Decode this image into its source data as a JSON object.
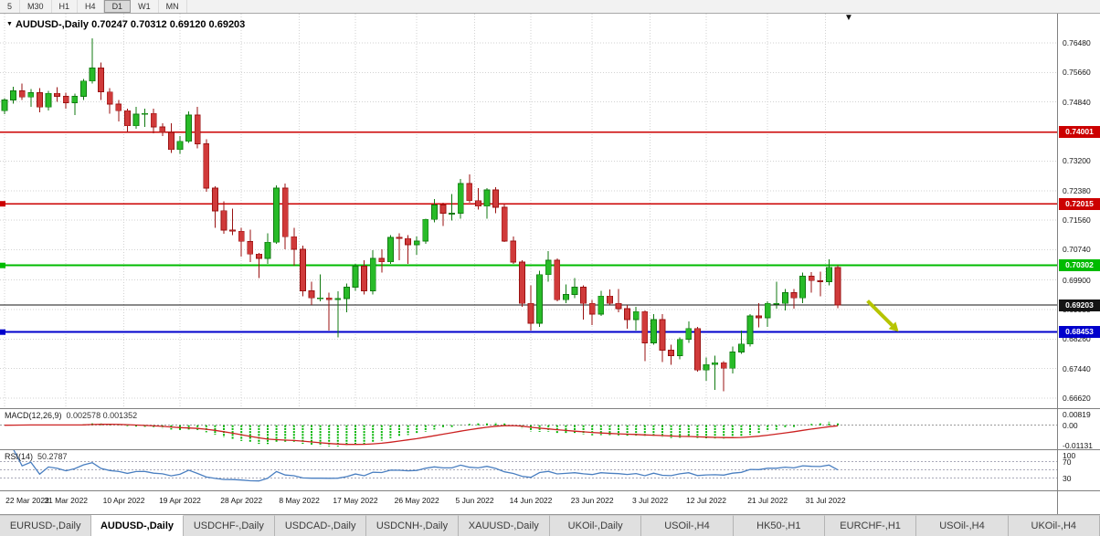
{
  "toolbar": {
    "timeframes": [
      {
        "label": "5",
        "active": false
      },
      {
        "label": "M30",
        "active": false
      },
      {
        "label": "H1",
        "active": false
      },
      {
        "label": "H4",
        "active": false
      },
      {
        "label": "D1",
        "active": true
      },
      {
        "label": "W1",
        "active": false
      },
      {
        "label": "MN",
        "active": false
      }
    ]
  },
  "chart_header": {
    "symbol": "AUDUSD-,Daily",
    "ohlc": "0.70247 0.70312 0.69120 0.69203"
  },
  "chart_data": {
    "type": "candlestick",
    "symbol": "AUDUSD",
    "period": "Daily",
    "title": "AUDUSD-,Daily",
    "ohlc_display": {
      "open": "0.70247",
      "high": "0.70312",
      "low": "0.69120",
      "close": "0.69203"
    },
    "y_range": {
      "top": 0.77292,
      "bottom": 0.6634
    },
    "y_ticks": [
      "0.76480",
      "0.75660",
      "0.74840",
      "0.73200",
      "0.72380",
      "0.71560",
      "0.70740",
      "0.69900",
      "0.69080",
      "0.68260",
      "0.67440",
      "0.66620"
    ],
    "x_labels": [
      {
        "text": "22 Mar 2022",
        "i": 0
      },
      {
        "text": "31 Mar 2022",
        "i": 7
      },
      {
        "text": "10 Apr 2022",
        "i": 13.6
      },
      {
        "text": "19 Apr 2022",
        "i": 20
      },
      {
        "text": "28 Apr 2022",
        "i": 27
      },
      {
        "text": "8 May 2022",
        "i": 33.6
      },
      {
        "text": "17 May 2022",
        "i": 40
      },
      {
        "text": "26 May 2022",
        "i": 47
      },
      {
        "text": "5 Jun 2022",
        "i": 53.6
      },
      {
        "text": "14 Jun 2022",
        "i": 60
      },
      {
        "text": "23 Jun 2022",
        "i": 67
      },
      {
        "text": "3 Jul 2022",
        "i": 73.6
      },
      {
        "text": "12 Jul 2022",
        "i": 80
      },
      {
        "text": "21 Jul 2022",
        "i": 87
      },
      {
        "text": "31 Jul 2022",
        "i": 93.6
      }
    ],
    "candles": [
      [
        0.746,
        0.7495,
        0.745,
        0.749
      ],
      [
        0.749,
        0.7527,
        0.748,
        0.7515
      ],
      [
        0.7515,
        0.7535,
        0.749,
        0.7498
      ],
      [
        0.7498,
        0.752,
        0.747,
        0.751
      ],
      [
        0.751,
        0.7522,
        0.7455,
        0.747
      ],
      [
        0.747,
        0.7515,
        0.746,
        0.7508
      ],
      [
        0.7508,
        0.7525,
        0.7485,
        0.75
      ],
      [
        0.75,
        0.751,
        0.7465,
        0.7482
      ],
      [
        0.7482,
        0.7508,
        0.7448,
        0.75
      ],
      [
        0.75,
        0.7548,
        0.749,
        0.7542
      ],
      [
        0.7542,
        0.7661,
        0.7535,
        0.7578
      ],
      [
        0.7578,
        0.7593,
        0.749,
        0.7512
      ],
      [
        0.7512,
        0.7522,
        0.7452,
        0.7478
      ],
      [
        0.7478,
        0.749,
        0.743,
        0.746
      ],
      [
        0.746,
        0.7465,
        0.74,
        0.7418
      ],
      [
        0.7418,
        0.747,
        0.741,
        0.745
      ],
      [
        0.745,
        0.7465,
        0.7415,
        0.7452
      ],
      [
        0.7452,
        0.7465,
        0.7397,
        0.7415
      ],
      [
        0.7415,
        0.7425,
        0.739,
        0.74
      ],
      [
        0.74,
        0.7425,
        0.7342,
        0.7352
      ],
      [
        0.7352,
        0.739,
        0.734,
        0.7375
      ],
      [
        0.7375,
        0.7458,
        0.737,
        0.7448
      ],
      [
        0.7448,
        0.747,
        0.7355,
        0.7368
      ],
      [
        0.7368,
        0.738,
        0.7235,
        0.7245
      ],
      [
        0.7245,
        0.725,
        0.7135,
        0.7182
      ],
      [
        0.7182,
        0.7208,
        0.7118,
        0.7128
      ],
      [
        0.7128,
        0.7188,
        0.7115,
        0.7125
      ],
      [
        0.7125,
        0.7135,
        0.7055,
        0.7097
      ],
      [
        0.7097,
        0.713,
        0.704,
        0.7062
      ],
      [
        0.7062,
        0.7065,
        0.6995,
        0.705
      ],
      [
        0.705,
        0.712,
        0.7035,
        0.7095
      ],
      [
        0.7095,
        0.7253,
        0.709,
        0.7245
      ],
      [
        0.7245,
        0.7258,
        0.7075,
        0.711
      ],
      [
        0.711,
        0.7135,
        0.703,
        0.7075
      ],
      [
        0.7075,
        0.7085,
        0.6945,
        0.696
      ],
      [
        0.696,
        0.6985,
        0.692,
        0.694
      ],
      [
        0.694,
        0.7005,
        0.693,
        0.694
      ],
      [
        0.694,
        0.6955,
        0.685,
        0.6935
      ],
      [
        0.6935,
        0.6958,
        0.683,
        0.6938
      ],
      [
        0.6938,
        0.698,
        0.69,
        0.697
      ],
      [
        0.697,
        0.7035,
        0.696,
        0.7028
      ],
      [
        0.7028,
        0.7045,
        0.695,
        0.696
      ],
      [
        0.696,
        0.7073,
        0.695,
        0.705
      ],
      [
        0.705,
        0.7075,
        0.701,
        0.704
      ],
      [
        0.704,
        0.7115,
        0.7035,
        0.7108
      ],
      [
        0.7108,
        0.712,
        0.7045,
        0.7105
      ],
      [
        0.7105,
        0.7115,
        0.7035,
        0.7088
      ],
      [
        0.7088,
        0.711,
        0.706,
        0.7098
      ],
      [
        0.7098,
        0.716,
        0.709,
        0.7158
      ],
      [
        0.7158,
        0.7215,
        0.715,
        0.7198
      ],
      [
        0.7198,
        0.7205,
        0.714,
        0.7175
      ],
      [
        0.7175,
        0.7228,
        0.7155,
        0.7175
      ],
      [
        0.7175,
        0.727,
        0.716,
        0.7258
      ],
      [
        0.7258,
        0.7283,
        0.7205,
        0.721
      ],
      [
        0.721,
        0.7245,
        0.7185,
        0.7195
      ],
      [
        0.7195,
        0.7245,
        0.716,
        0.724
      ],
      [
        0.724,
        0.7247,
        0.7175,
        0.7192
      ],
      [
        0.7192,
        0.72,
        0.7095,
        0.7098
      ],
      [
        0.7098,
        0.711,
        0.7035,
        0.704
      ],
      [
        0.704,
        0.7045,
        0.6915,
        0.6925
      ],
      [
        0.6925,
        0.6975,
        0.685,
        0.687
      ],
      [
        0.687,
        0.7015,
        0.686,
        0.7005
      ],
      [
        0.7005,
        0.707,
        0.6985,
        0.7045
      ],
      [
        0.7045,
        0.705,
        0.693,
        0.6935
      ],
      [
        0.6935,
        0.6978,
        0.6925,
        0.695
      ],
      [
        0.695,
        0.6995,
        0.694,
        0.697
      ],
      [
        0.697,
        0.6975,
        0.688,
        0.6925
      ],
      [
        0.6925,
        0.6935,
        0.6865,
        0.6895
      ],
      [
        0.6895,
        0.696,
        0.689,
        0.6945
      ],
      [
        0.6945,
        0.6963,
        0.692,
        0.6925
      ],
      [
        0.6925,
        0.6965,
        0.69,
        0.691
      ],
      [
        0.691,
        0.692,
        0.6855,
        0.688
      ],
      [
        0.688,
        0.6915,
        0.685,
        0.6902
      ],
      [
        0.6902,
        0.6905,
        0.6765,
        0.6815
      ],
      [
        0.6815,
        0.6895,
        0.681,
        0.688
      ],
      [
        0.688,
        0.6895,
        0.6762,
        0.6795
      ],
      [
        0.6795,
        0.681,
        0.6755,
        0.678
      ],
      [
        0.678,
        0.683,
        0.677,
        0.6825
      ],
      [
        0.6825,
        0.6875,
        0.6815,
        0.6855
      ],
      [
        0.6855,
        0.686,
        0.6735,
        0.674
      ],
      [
        0.674,
        0.6775,
        0.671,
        0.6755
      ],
      [
        0.6755,
        0.678,
        0.6685,
        0.676
      ],
      [
        0.676,
        0.6765,
        0.6681,
        0.6745
      ],
      [
        0.6745,
        0.6805,
        0.673,
        0.679
      ],
      [
        0.679,
        0.685,
        0.6785,
        0.6812
      ],
      [
        0.6812,
        0.6895,
        0.6805,
        0.689
      ],
      [
        0.689,
        0.6925,
        0.6858,
        0.6885
      ],
      [
        0.6885,
        0.693,
        0.686,
        0.6925
      ],
      [
        0.6925,
        0.6985,
        0.691,
        0.6925
      ],
      [
        0.6925,
        0.6965,
        0.6905,
        0.6955
      ],
      [
        0.6955,
        0.6965,
        0.691,
        0.694
      ],
      [
        0.694,
        0.701,
        0.6925,
        0.7
      ],
      [
        0.7,
        0.7012,
        0.6955,
        0.6988
      ],
      [
        0.6988,
        0.7013,
        0.6945,
        0.6985
      ],
      [
        0.6985,
        0.7047,
        0.6975,
        0.7025
      ],
      [
        0.70247,
        0.70312,
        0.6912,
        0.69203
      ]
    ],
    "hlines": [
      {
        "price": 0.74001,
        "label": "0.74001",
        "color": "#cc0000",
        "width": 1.4,
        "marker": false,
        "role": "resistance"
      },
      {
        "price": 0.72015,
        "label": "0.72015",
        "color": "#cc0000",
        "width": 1.4,
        "marker": true,
        "role": "resistance"
      },
      {
        "price": 0.70302,
        "label": "0.70302",
        "color": "#00bb00",
        "width": 2,
        "marker": true,
        "role": "resistance"
      },
      {
        "price": 0.69203,
        "label": "0.69203",
        "color": "#141414",
        "width": 1,
        "marker": false,
        "role": "current-price"
      },
      {
        "price": 0.68453,
        "label": "0.68453",
        "color": "#0000cc",
        "width": 2,
        "marker": true,
        "role": "support"
      }
    ],
    "indicators": {
      "macd": {
        "label": "MACD(12,26,9)",
        "values": "0.002578 0.001352",
        "axis": [
          "0.00819",
          "0.00",
          "-0.01131"
        ],
        "scale_max": 0.00819,
        "scale_min": -0.01131
      },
      "rsi": {
        "label": "RSI(14)",
        "value": "50.2787",
        "axis": [
          "100",
          "70",
          "30"
        ],
        "levels": [
          70,
          50,
          30
        ]
      }
    },
    "annotations": {
      "arrow": {
        "i1": 98.4,
        "p1": 0.6932,
        "i2": 101.2,
        "p2": 0.6864,
        "color": "#b6c400",
        "meaning": "sell-direction-arrow"
      },
      "shift_marker": {
        "i": 96.3,
        "glyph": "▼"
      }
    },
    "style": {
      "bull": "#28bb28",
      "bull_border": "#117a11",
      "bear": "#d03a3a",
      "bear_border": "#9a1212",
      "macd_hist": "#00b400",
      "macd_signal": "#cc2222",
      "rsi": "#4a7fc1"
    }
  },
  "tabs": {
    "active_index": 1,
    "items": [
      "EURUSD-,Daily",
      "AUDUSD-,Daily",
      "USDCHF-,Daily",
      "USDCAD-,Daily",
      "USDCNH-,Daily",
      "XAUUSD-,Daily",
      "UKOil-,Daily",
      "USOil-,H4",
      "HK50-,H1",
      "EURCHF-,H1",
      "USOil-,H4",
      "UKOil-,H4"
    ]
  }
}
